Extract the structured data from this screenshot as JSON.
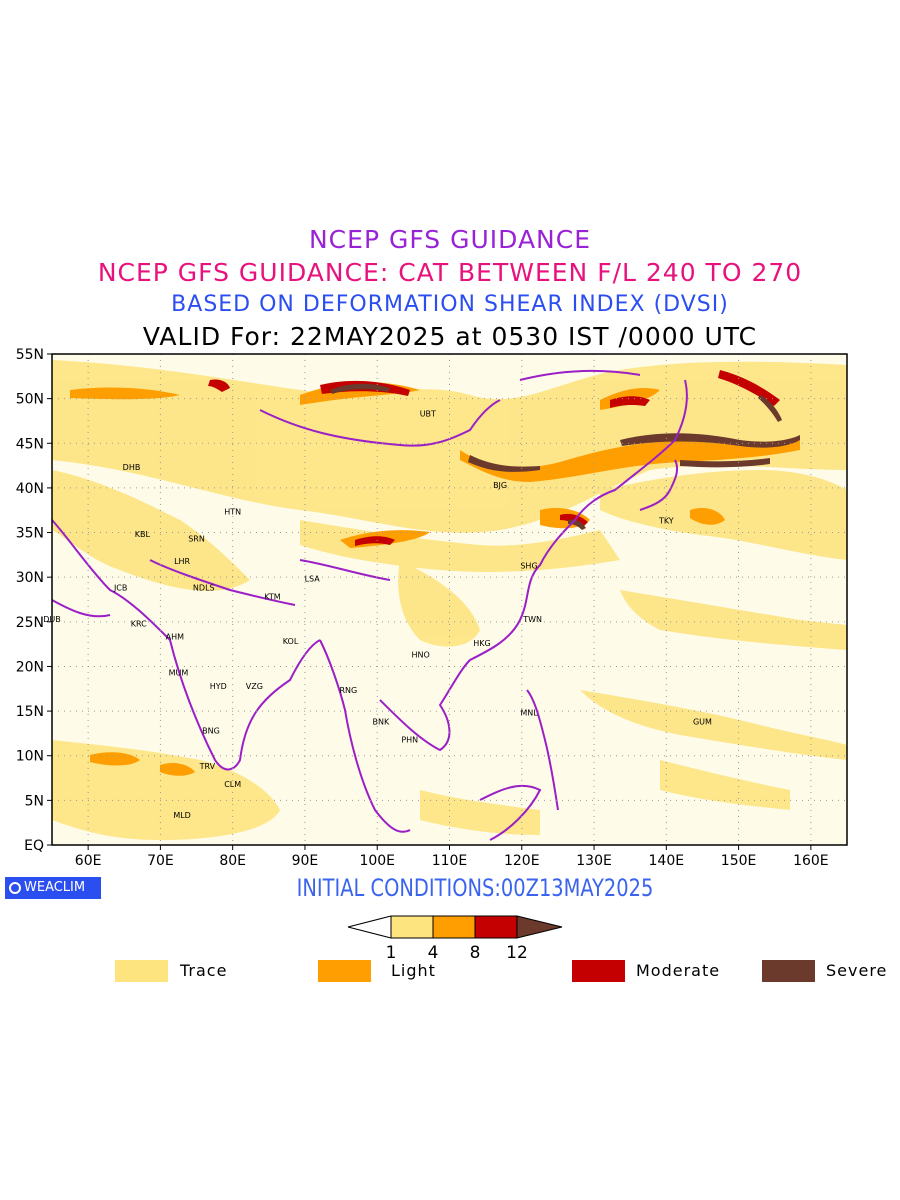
{
  "titles": {
    "line1": "NCEP GFS GUIDANCE",
    "line2": "NCEP GFS GUIDANCE: CAT BETWEEN F/L 240 TO 270",
    "line3": "BASED ON DEFORMATION SHEAR INDEX (DVSI)",
    "line4": "VALID For: 22MAY2025 at 0530 IST /0000 UTC"
  },
  "initial_conditions": "INITIAL CONDITIONS:00Z13MAY2025",
  "logo_text": "WEACLIM",
  "axes": {
    "lon_labels": [
      "60E",
      "70E",
      "80E",
      "90E",
      "100E",
      "110E",
      "120E",
      "130E",
      "140E",
      "150E",
      "160E"
    ],
    "lat_labels": [
      "55N",
      "50N",
      "45N",
      "40N",
      "35N",
      "30N",
      "25N",
      "20N",
      "15N",
      "10N",
      "5N",
      "EQ"
    ],
    "lon_range": [
      55,
      165
    ],
    "lat_range": [
      0,
      55
    ],
    "grid": "dotted"
  },
  "colorbar": {
    "ticks": [
      "1",
      "4",
      "8",
      "12"
    ],
    "colors": [
      "#ffffff",
      "#fde47f",
      "#ff9e00",
      "#c40000",
      "#6b3a2d"
    ]
  },
  "legend": [
    {
      "label": "Trace",
      "color": "#fde47f"
    },
    {
      "label": "Light",
      "color": "#ff9e00"
    },
    {
      "label": "Moderate",
      "color": "#c40000"
    },
    {
      "label": "Severe",
      "color": "#6b3a2d"
    }
  ],
  "stations": [
    {
      "code": "UBT",
      "lon": 107,
      "lat": 48
    },
    {
      "code": "BJG",
      "lon": 117,
      "lat": 40
    },
    {
      "code": "TKY",
      "lon": 140,
      "lat": 36
    },
    {
      "code": "SHG",
      "lon": 121,
      "lat": 31
    },
    {
      "code": "TWN",
      "lon": 121.5,
      "lat": 25
    },
    {
      "code": "HKG",
      "lon": 114.5,
      "lat": 22.3
    },
    {
      "code": "HNO",
      "lon": 106,
      "lat": 21
    },
    {
      "code": "DHB",
      "lon": 66,
      "lat": 42
    },
    {
      "code": "HTN",
      "lon": 80,
      "lat": 37
    },
    {
      "code": "KBL",
      "lon": 67.5,
      "lat": 34.5
    },
    {
      "code": "SRN",
      "lon": 75,
      "lat": 34
    },
    {
      "code": "LHR",
      "lon": 73,
      "lat": 31.5
    },
    {
      "code": "JCB",
      "lon": 64.5,
      "lat": 28.5
    },
    {
      "code": "NDLS",
      "lon": 76,
      "lat": 28.5
    },
    {
      "code": "KTM",
      "lon": 85.5,
      "lat": 27.5
    },
    {
      "code": "LSA",
      "lon": 91,
      "lat": 29.5
    },
    {
      "code": "DUB",
      "lon": 55,
      "lat": 25
    },
    {
      "code": "KRC",
      "lon": 67,
      "lat": 24.5
    },
    {
      "code": "AHM",
      "lon": 72,
      "lat": 23
    },
    {
      "code": "KOL",
      "lon": 88,
      "lat": 22.5
    },
    {
      "code": "MUM",
      "lon": 72.5,
      "lat": 19
    },
    {
      "code": "HYD",
      "lon": 78,
      "lat": 17.5
    },
    {
      "code": "VZG",
      "lon": 83,
      "lat": 17.5
    },
    {
      "code": "RNG",
      "lon": 96,
      "lat": 17
    },
    {
      "code": "BNK",
      "lon": 100.5,
      "lat": 13.5
    },
    {
      "code": "PHN",
      "lon": 104.5,
      "lat": 11.5
    },
    {
      "code": "MNL",
      "lon": 121,
      "lat": 14.5
    },
    {
      "code": "GUM",
      "lon": 145,
      "lat": 13.5
    },
    {
      "code": "BNG",
      "lon": 77,
      "lat": 12.5
    },
    {
      "code": "TRV",
      "lon": 76.5,
      "lat": 8.5
    },
    {
      "code": "CLM",
      "lon": 80,
      "lat": 6.5
    },
    {
      "code": "MLD",
      "lon": 73,
      "lat": 3
    }
  ]
}
